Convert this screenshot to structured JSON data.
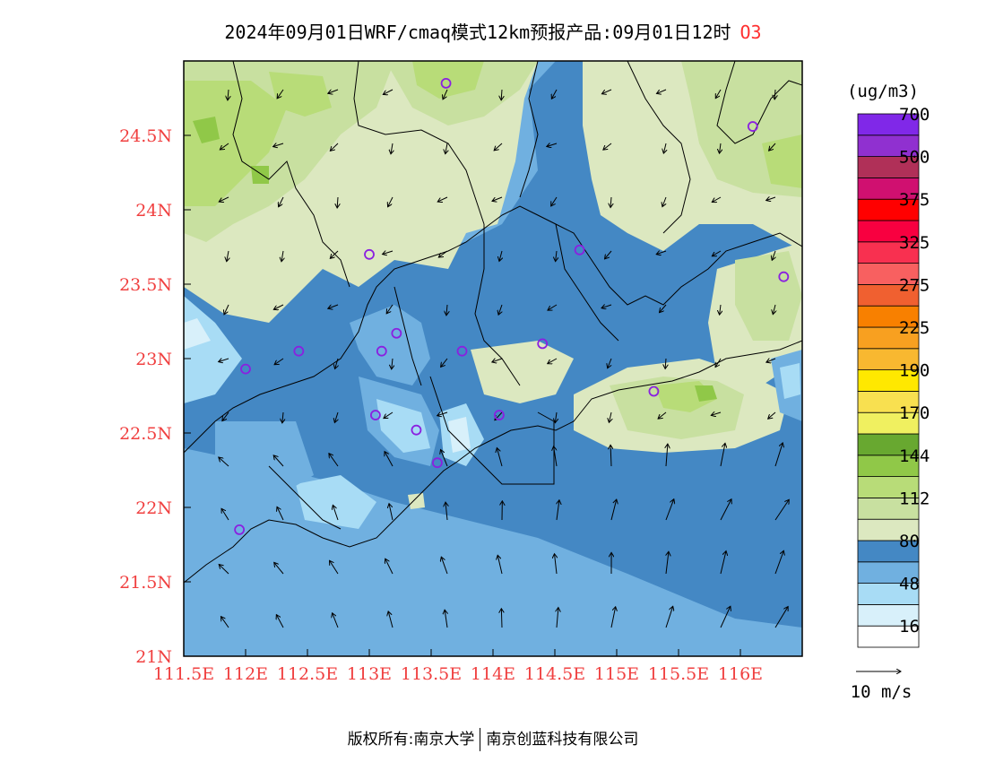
{
  "title": {
    "text": "2024年09月01日WRF/cmaq模式12km预报产品:09月01日12时",
    "variable": "O3"
  },
  "legend": {
    "unit": "(ug/m3)",
    "colors": [
      "#ffffff",
      "#d8f0fa",
      "#a8dcf5",
      "#70b0e0",
      "#4488c4",
      "#dce8c0",
      "#c8e0a0",
      "#b8dc78",
      "#90c848",
      "#68a830",
      "#f0f060",
      "#f8e050",
      "#ffe800",
      "#f8b830",
      "#f8a020",
      "#f88000",
      "#f06030",
      "#f86060",
      "#f83050",
      "#f80040",
      "#ff0000",
      "#d01070",
      "#b03058",
      "#9030d0",
      "#8028e8"
    ],
    "labels": [
      "16",
      "48",
      "80",
      "112",
      "144",
      "170",
      "190",
      "225",
      "275",
      "325",
      "375",
      "500",
      "700"
    ]
  },
  "axes": {
    "xticks": [
      "111.5E",
      "112E",
      "112.5E",
      "113E",
      "113.5E",
      "114E",
      "114.5E",
      "115E",
      "115.5E",
      "116E"
    ],
    "yticks": [
      "21N",
      "21.5N",
      "22N",
      "22.5N",
      "23N",
      "23.5N",
      "24N",
      "24.5N"
    ],
    "xrange": [
      111.5,
      116.5
    ],
    "yrange": [
      21,
      25
    ]
  },
  "wind_reference": "10 m/s",
  "footer": {
    "left": "版权所有:南京大学",
    "right": "南京创蓝科技有限公司"
  },
  "stations": [
    [
      112.0,
      22.93
    ],
    [
      112.43,
      23.05
    ],
    [
      113.0,
      23.7
    ],
    [
      113.1,
      23.05
    ],
    [
      113.22,
      23.17
    ],
    [
      113.05,
      22.62
    ],
    [
      113.38,
      22.52
    ],
    [
      113.55,
      22.3
    ],
    [
      113.75,
      23.05
    ],
    [
      114.05,
      22.62
    ],
    [
      114.4,
      23.1
    ],
    [
      114.7,
      23.73
    ],
    [
      115.3,
      22.78
    ],
    [
      116.1,
      24.56
    ],
    [
      116.35,
      23.55
    ],
    [
      113.62,
      24.85
    ],
    [
      111.95,
      21.85
    ]
  ]
}
